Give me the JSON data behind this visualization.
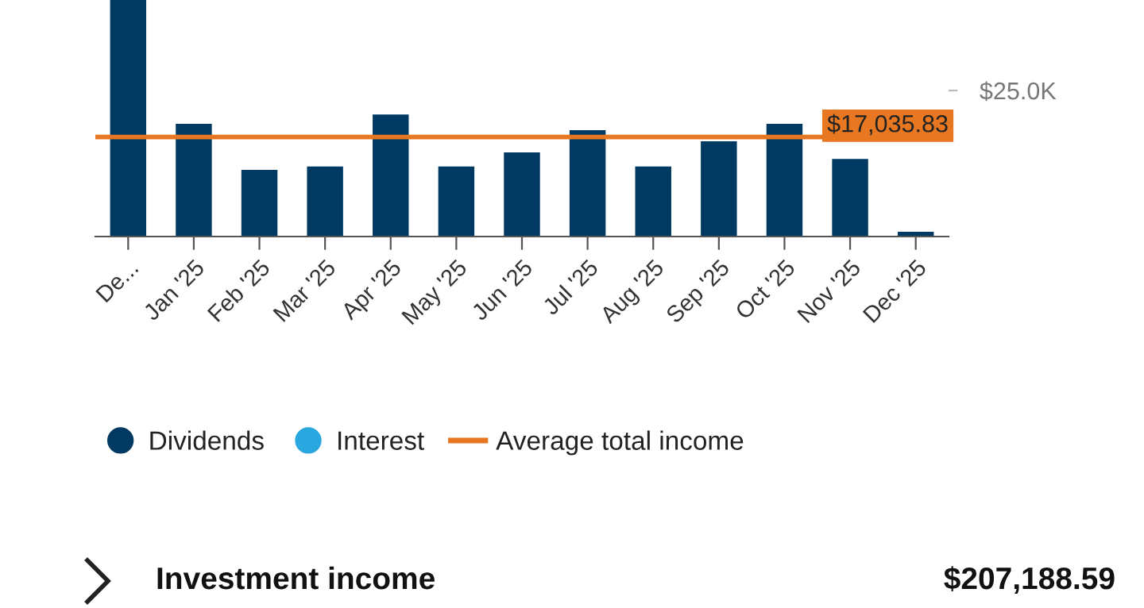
{
  "chart_data": {
    "type": "bar",
    "categories": [
      "De...",
      "Jan '25",
      "Feb '25",
      "Mar '25",
      "Apr '25",
      "May '25",
      "Jun '25",
      "Jul '25",
      "Aug '25",
      "Sep '25",
      "Oct '25",
      "Nov '25",
      "Dec '25"
    ],
    "series": [
      {
        "name": "Dividends",
        "color": "#003a63",
        "values": [
          40500,
          19300,
          11400,
          12000,
          20900,
          12000,
          14400,
          18200,
          12000,
          16300,
          19300,
          13300,
          800
        ]
      },
      {
        "name": "Interest",
        "color": "#29a8e0",
        "values": [
          null,
          null,
          null,
          null,
          null,
          null,
          null,
          null,
          null,
          null,
          null,
          null,
          null
        ]
      }
    ],
    "ylim": [
      0,
      40500
    ],
    "yticks": [
      {
        "value": 25000,
        "label": "$25.0K"
      }
    ],
    "ref_lines": [
      {
        "axis": "y",
        "value": 17035.83,
        "label": "$17,035.83",
        "color": "#e87722",
        "line_style": "solid"
      }
    ],
    "legend": "bottom",
    "grid": false,
    "annotations": [
      "Average total income",
      "Investment income",
      "$207,188.59"
    ]
  }
}
